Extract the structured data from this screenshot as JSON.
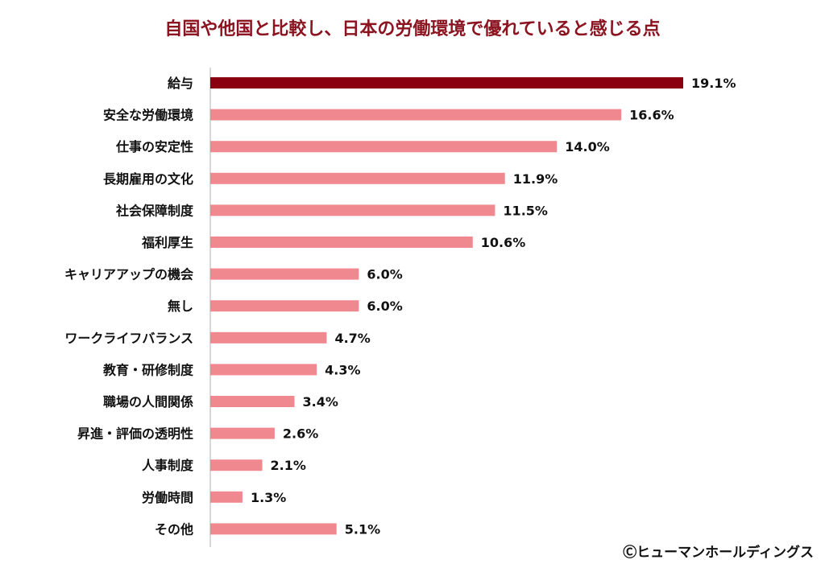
{
  "chart_data": {
    "type": "bar",
    "orientation": "horizontal",
    "title": "自国や他国と比較し、日本の労働環境で優れていると感じる点",
    "categories": [
      "給与",
      "安全な労働環境",
      "仕事の安定性",
      "長期雇用の文化",
      "社会保障制度",
      "福利厚生",
      "キャリアアップの機会",
      "無し",
      "ワークライフバランス",
      "教育・研修制度",
      "職場の人間関係",
      "昇進・評価の透明性",
      "人事制度",
      "労働時間",
      "その他"
    ],
    "values": [
      19.1,
      16.6,
      14.0,
      11.9,
      11.5,
      10.6,
      6.0,
      6.0,
      4.7,
      4.3,
      3.4,
      2.6,
      2.1,
      1.3,
      5.1
    ],
    "value_labels": [
      "19.1%",
      "16.6%",
      "14.0%",
      "11.9%",
      "11.5%",
      "10.6%",
      "6.0%",
      "6.0%",
      "4.7%",
      "4.3%",
      "3.4%",
      "2.6%",
      "2.1%",
      "1.3%",
      "5.1%"
    ],
    "unit": "%",
    "xlim": [
      0,
      20
    ],
    "grid": false,
    "colors": {
      "highlight": "#8b0010",
      "default": "#f0888f",
      "axis": "#cccccc"
    }
  },
  "credit": "Ⓒヒューマンホールディングス"
}
